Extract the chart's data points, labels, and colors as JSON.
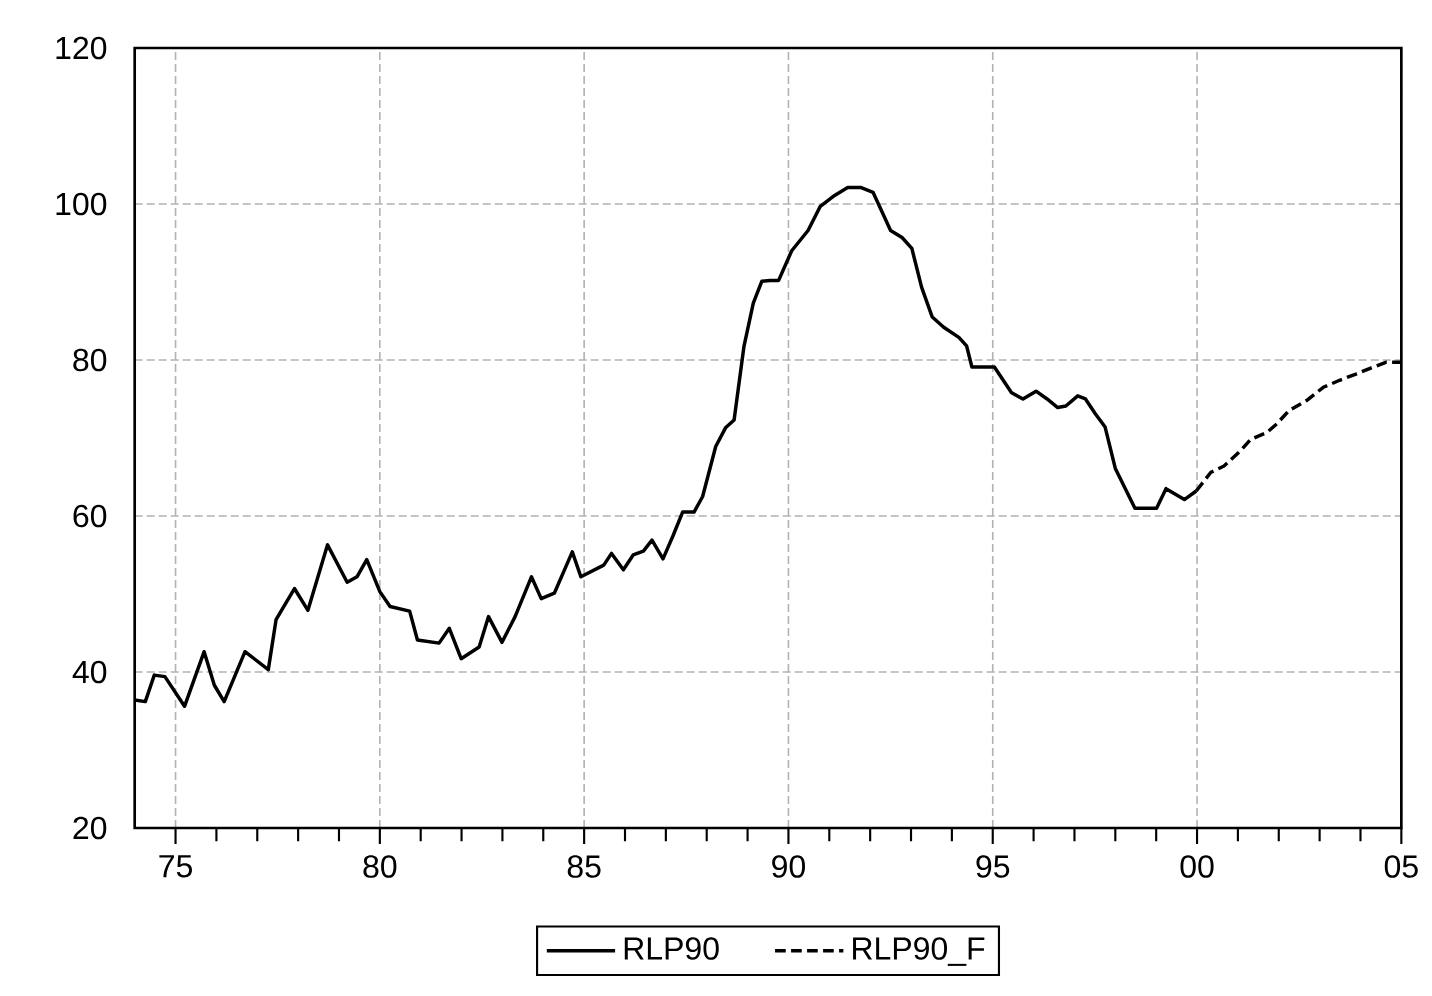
{
  "chart_data": {
    "type": "line",
    "xlim": [
      1974,
      2005
    ],
    "ylim": [
      20,
      120
    ],
    "xticks": [
      {
        "value": 1975,
        "label": "75"
      },
      {
        "value": 1976,
        "label": null
      },
      {
        "value": 1977,
        "label": null
      },
      {
        "value": 1978,
        "label": null
      },
      {
        "value": 1979,
        "label": null
      },
      {
        "value": 1980,
        "label": "80"
      },
      {
        "value": 1981,
        "label": null
      },
      {
        "value": 1982,
        "label": null
      },
      {
        "value": 1983,
        "label": null
      },
      {
        "value": 1984,
        "label": null
      },
      {
        "value": 1985,
        "label": "85"
      },
      {
        "value": 1986,
        "label": null
      },
      {
        "value": 1987,
        "label": null
      },
      {
        "value": 1988,
        "label": null
      },
      {
        "value": 1989,
        "label": null
      },
      {
        "value": 1990,
        "label": "90"
      },
      {
        "value": 1991,
        "label": null
      },
      {
        "value": 1992,
        "label": null
      },
      {
        "value": 1993,
        "label": null
      },
      {
        "value": 1994,
        "label": null
      },
      {
        "value": 1995,
        "label": "95"
      },
      {
        "value": 1996,
        "label": null
      },
      {
        "value": 1997,
        "label": null
      },
      {
        "value": 1998,
        "label": null
      },
      {
        "value": 1999,
        "label": null
      },
      {
        "value": 2000,
        "label": "00"
      },
      {
        "value": 2001,
        "label": null
      },
      {
        "value": 2002,
        "label": null
      },
      {
        "value": 2003,
        "label": null
      },
      {
        "value": 2004,
        "label": null
      },
      {
        "value": 2005,
        "label": "05"
      }
    ],
    "yticks": [
      20,
      40,
      60,
      80,
      100,
      120
    ],
    "grid": true,
    "legend": "bottom",
    "series": [
      {
        "name": "RLP90",
        "color": "#000000",
        "line_style": "solid",
        "x": [
          1974.0,
          1974.26,
          1974.48,
          1974.74,
          1975.22,
          1975.7,
          1975.95,
          1976.19,
          1976.7,
          1977.27,
          1977.46,
          1977.91,
          1978.24,
          1978.72,
          1979.2,
          1979.44,
          1979.68,
          1980.0,
          1980.25,
          1980.73,
          1980.92,
          1981.45,
          1981.7,
          1981.99,
          1982.43,
          1982.66,
          1982.99,
          1983.31,
          1983.71,
          1983.95,
          1984.27,
          1984.71,
          1984.92,
          1985.48,
          1985.67,
          1985.96,
          1986.2,
          1986.45,
          1986.66,
          1986.93,
          1987.17,
          1987.41,
          1987.69,
          1987.9,
          1988.22,
          1988.46,
          1988.67,
          1988.91,
          1989.14,
          1989.35,
          1989.55,
          1989.76,
          1990.08,
          1990.48,
          1990.78,
          1991.13,
          1991.45,
          1991.78,
          1992.07,
          1992.5,
          1992.78,
          1993.02,
          1993.26,
          1993.52,
          1993.8,
          1994.17,
          1994.36,
          1994.49,
          1995.04,
          1995.46,
          1995.74,
          1996.06,
          1996.33,
          1996.59,
          1996.79,
          1997.08,
          1997.27,
          1997.51,
          1997.75,
          1998.0,
          1998.48,
          1999.01,
          1999.24,
          1999.69,
          1999.98
        ],
        "values": [
          36.4,
          36.2,
          39.6,
          39.4,
          35.6,
          42.6,
          38.3,
          36.2,
          42.6,
          40.3,
          46.7,
          50.7,
          47.9,
          56.3,
          51.5,
          52.2,
          54.4,
          50.3,
          48.4,
          47.8,
          44.1,
          43.7,
          45.6,
          41.7,
          43.2,
          47.1,
          43.8,
          47.1,
          52.2,
          49.4,
          50.1,
          55.4,
          52.2,
          53.7,
          55.2,
          53.1,
          55.0,
          55.5,
          56.9,
          54.5,
          57.4,
          60.5,
          60.5,
          62.5,
          68.9,
          71.3,
          72.3,
          81.7,
          87.3,
          90.1,
          90.2,
          90.2,
          94.0,
          96.6,
          99.7,
          101.1,
          102.1,
          102.1,
          101.5,
          96.6,
          95.7,
          94.3,
          89.3,
          85.5,
          84.2,
          82.9,
          81.8,
          79.1,
          79.1,
          75.8,
          75.0,
          76.0,
          75.0,
          73.9,
          74.1,
          75.4,
          75.0,
          73.1,
          71.4,
          66.1,
          61.0,
          61.0,
          63.5,
          62.1,
          63.2
        ]
      },
      {
        "name": "RLP90_F",
        "color": "#000000",
        "line_style": "dashed",
        "x": [
          1999.98,
          2000.34,
          2000.66,
          2001.07,
          2001.31,
          2001.71,
          2001.95,
          2002.25,
          2002.68,
          2003.09,
          2003.49,
          2003.89,
          2004.22,
          2004.62,
          2004.99
        ],
        "values": [
          63.2,
          65.6,
          66.4,
          68.4,
          69.8,
          70.7,
          71.8,
          73.5,
          74.8,
          76.5,
          77.4,
          78.2,
          78.9,
          79.7,
          79.7
        ]
      }
    ]
  }
}
